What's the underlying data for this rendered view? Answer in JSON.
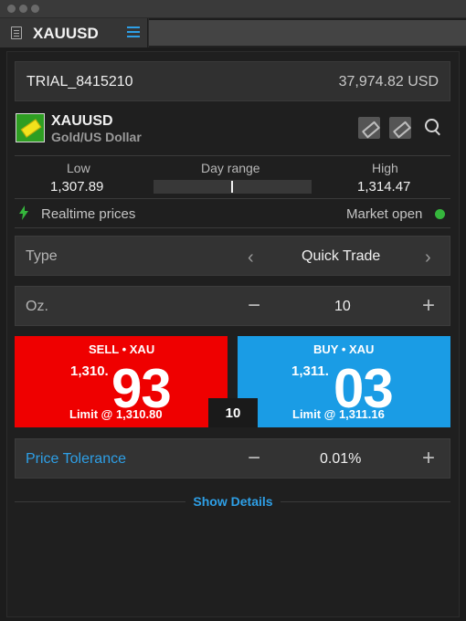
{
  "tab": {
    "title": "XAUUSD"
  },
  "account": {
    "id": "TRIAL_8415210",
    "balance": "37,974.82 USD"
  },
  "instrument": {
    "symbol": "XAUUSD",
    "name": "Gold/US Dollar"
  },
  "range": {
    "low_label": "Low",
    "low_value": "1,307.89",
    "range_label": "Day range",
    "high_label": "High",
    "high_value": "1,314.47",
    "current_fraction": 0.49
  },
  "status": {
    "realtime": "Realtime prices",
    "market": "Market open",
    "market_color": "#35b63c"
  },
  "order_type": {
    "label": "Type",
    "value": "Quick Trade",
    "prev": "‹",
    "next": "›"
  },
  "quantity": {
    "label": "Oz.",
    "value": "10",
    "minus": "−",
    "plus": "+"
  },
  "sell": {
    "title": "SELL • XAU",
    "price_prefix": "1,310.",
    "price_big": "93",
    "limit": "Limit @ 1,310.80",
    "color": "#ef0000"
  },
  "buy": {
    "title": "BUY • XAU",
    "price_prefix": "1,311.",
    "price_big": "03",
    "limit": "Limit @ 1,311.16",
    "color": "#1a9ce5"
  },
  "spread_qty": "10",
  "tolerance": {
    "label": "Price Tolerance",
    "value": "0.01%",
    "minus": "−",
    "plus": "+"
  },
  "show_details": "Show Details",
  "colors": {
    "accent": "#2e9fe6"
  }
}
